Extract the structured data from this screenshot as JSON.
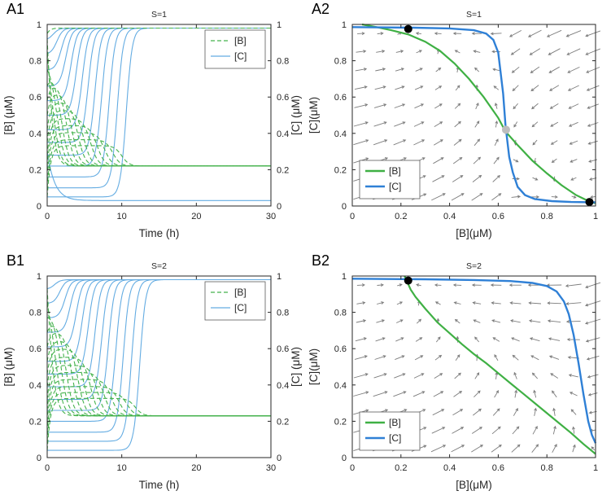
{
  "page": {
    "background": "#ffffff"
  },
  "chart_data": [
    {
      "panel_label": "A1",
      "type": "line",
      "subtype": "timecourse",
      "title": "S=1",
      "xlabel": "Time (h)",
      "ylabel": "[B] (μM)",
      "ylabel_right": "[C] (μM)",
      "xlim": [
        0,
        30
      ],
      "ylim": [
        0,
        1
      ],
      "xticks": [
        0,
        10,
        20,
        30
      ],
      "yticks": [
        0,
        0.2,
        0.4,
        0.6,
        0.8,
        1
      ],
      "legend": {
        "position": "northeast",
        "entries": [
          {
            "label": "[B]",
            "color": "#44b24c",
            "dash": "5,3"
          },
          {
            "label": "[C]",
            "color": "#64ace2",
            "dash": ""
          }
        ]
      },
      "steady_states": {
        "B_high": 0.98,
        "B_low": 0.22,
        "C_high": 0.98,
        "C_low": 0.03
      },
      "trajectories": [
        {
          "v": 0.05,
          "tc": 10.6,
          "fate": "C_high"
        },
        {
          "v": 0.1,
          "tc": 9.4,
          "fate": "C_high"
        },
        {
          "v": 0.16,
          "tc": 8.3,
          "fate": "C_high"
        },
        {
          "v": 0.22,
          "tc": 7.3,
          "fate": "C_high"
        },
        {
          "v": 0.28,
          "tc": 6.4,
          "fate": "C_high"
        },
        {
          "v": 0.35,
          "tc": 5.5,
          "fate": "C_high"
        },
        {
          "v": 0.42,
          "tc": 4.7,
          "fate": "C_high"
        },
        {
          "v": 0.5,
          "tc": 3.9,
          "fate": "C_high"
        },
        {
          "v": 0.58,
          "tc": 3.2,
          "fate": "C_high"
        },
        {
          "v": 0.66,
          "tc": 2.5,
          "fate": "C_high"
        },
        {
          "v": 0.75,
          "tc": 1.9,
          "fate": "C_high"
        },
        {
          "v": 0.84,
          "tc": 1.3,
          "fate": "C_high"
        },
        {
          "v": 0.92,
          "tc": 0.8,
          "fate": "C_high"
        },
        {
          "v": 0.95,
          "c0": 0.3,
          "fate": "B_high"
        }
      ]
    },
    {
      "panel_label": "A2",
      "type": "line",
      "subtype": "phaseplane",
      "title": "S=1",
      "xlabel": "[B](μM)",
      "ylabel": "[C](μM)",
      "xlim": [
        0,
        1
      ],
      "ylim": [
        0,
        1
      ],
      "xticks": [
        0,
        0.2,
        0.4,
        0.6,
        0.8,
        1
      ],
      "yticks": [
        0,
        0.2,
        0.4,
        0.6,
        0.8,
        1
      ],
      "legend": {
        "position": "southwest",
        "entries": [
          {
            "label": "[B]",
            "color": "#3fb044",
            "dash": ""
          },
          {
            "label": "[C]",
            "color": "#2f80d6",
            "dash": ""
          }
        ]
      },
      "nullclines": {
        "B": [
          [
            0.04,
            1.0
          ],
          [
            0.1,
            0.985
          ],
          [
            0.16,
            0.968
          ],
          [
            0.23,
            0.945
          ],
          [
            0.3,
            0.905
          ],
          [
            0.36,
            0.855
          ],
          [
            0.42,
            0.785
          ],
          [
            0.48,
            0.7
          ],
          [
            0.54,
            0.6
          ],
          [
            0.6,
            0.485
          ],
          [
            0.63,
            0.41
          ],
          [
            0.68,
            0.335
          ],
          [
            0.74,
            0.25
          ],
          [
            0.8,
            0.18
          ],
          [
            0.86,
            0.115
          ],
          [
            0.92,
            0.06
          ],
          [
            0.97,
            0.028
          ],
          [
            1.0,
            0.015
          ]
        ],
        "C": [
          [
            0.0,
            0.985
          ],
          [
            0.25,
            0.982
          ],
          [
            0.4,
            0.978
          ],
          [
            0.5,
            0.968
          ],
          [
            0.55,
            0.95
          ],
          [
            0.58,
            0.915
          ],
          [
            0.6,
            0.845
          ],
          [
            0.62,
            0.62
          ],
          [
            0.63,
            0.44
          ],
          [
            0.645,
            0.27
          ],
          [
            0.66,
            0.185
          ],
          [
            0.68,
            0.105
          ],
          [
            0.71,
            0.06
          ],
          [
            0.75,
            0.038
          ],
          [
            0.82,
            0.027
          ],
          [
            0.9,
            0.022
          ],
          [
            1.0,
            0.02
          ]
        ]
      },
      "fixed_points": [
        {
          "B": 0.23,
          "C": 0.975,
          "stability": "stable",
          "color": "#000000"
        },
        {
          "B": 0.632,
          "C": 0.42,
          "stability": "unstable",
          "color": "#bdbdbd"
        },
        {
          "B": 0.975,
          "C": 0.022,
          "stability": "stable",
          "color": "#000000"
        }
      ],
      "vector_field": {
        "color": "#7c7c7c",
        "x0": 0.035,
        "x1": 0.99,
        "nx": 13,
        "y0": 0.05,
        "y1": 0.95,
        "ny": 10,
        "v_scale": 0.3
      }
    },
    {
      "panel_label": "B1",
      "type": "line",
      "subtype": "timecourse",
      "title": "S=2",
      "xlabel": "Time (h)",
      "ylabel": "[B] (μM)",
      "ylabel_right": "[C] (μM)",
      "xlim": [
        0,
        30
      ],
      "ylim": [
        0,
        1
      ],
      "xticks": [
        0,
        10,
        20,
        30
      ],
      "yticks": [
        0,
        0.2,
        0.4,
        0.6,
        0.8,
        1
      ],
      "legend": {
        "position": "northeast",
        "entries": [
          {
            "label": "[B]",
            "color": "#44b24c",
            "dash": "5,3"
          },
          {
            "label": "[C]",
            "color": "#64ace2",
            "dash": ""
          }
        ]
      },
      "steady_states": {
        "B_high": 0.98,
        "B_low": 0.23,
        "C_high": 0.98,
        "C_low": 0.03
      },
      "trajectories": [
        {
          "v": 0.04,
          "tc": 12.4,
          "fate": "C_high"
        },
        {
          "v": 0.09,
          "tc": 11.3,
          "fate": "C_high"
        },
        {
          "v": 0.14,
          "tc": 10.2,
          "fate": "C_high"
        },
        {
          "v": 0.2,
          "tc": 9.2,
          "fate": "C_high"
        },
        {
          "v": 0.26,
          "tc": 8.2,
          "fate": "C_high"
        },
        {
          "v": 0.32,
          "tc": 7.3,
          "fate": "C_high"
        },
        {
          "v": 0.39,
          "tc": 6.4,
          "fate": "C_high"
        },
        {
          "v": 0.46,
          "tc": 5.5,
          "fate": "C_high"
        },
        {
          "v": 0.53,
          "tc": 4.7,
          "fate": "C_high"
        },
        {
          "v": 0.61,
          "tc": 3.9,
          "fate": "C_high"
        },
        {
          "v": 0.69,
          "tc": 3.1,
          "fate": "C_high"
        },
        {
          "v": 0.77,
          "tc": 2.4,
          "fate": "C_high"
        },
        {
          "v": 0.85,
          "tc": 1.7,
          "fate": "C_high"
        },
        {
          "v": 0.93,
          "tc": 1.0,
          "fate": "C_high"
        }
      ]
    },
    {
      "panel_label": "B2",
      "type": "line",
      "subtype": "phaseplane",
      "title": "S=2",
      "xlabel": "[B](μM)",
      "ylabel": "[C](μM)",
      "xlim": [
        0,
        1
      ],
      "ylim": [
        0,
        1
      ],
      "xticks": [
        0,
        0.2,
        0.4,
        0.6,
        0.8,
        1
      ],
      "yticks": [
        0,
        0.2,
        0.4,
        0.6,
        0.8,
        1
      ],
      "legend": {
        "position": "southwest",
        "entries": [
          {
            "label": "[B]",
            "color": "#3fb044",
            "dash": ""
          },
          {
            "label": "[C]",
            "color": "#2f80d6",
            "dash": ""
          }
        ]
      },
      "nullclines": {
        "B": [
          [
            0.215,
            1.0
          ],
          [
            0.225,
            0.97
          ],
          [
            0.24,
            0.925
          ],
          [
            0.26,
            0.885
          ],
          [
            0.3,
            0.82
          ],
          [
            0.35,
            0.745
          ],
          [
            0.4,
            0.685
          ],
          [
            0.45,
            0.625
          ],
          [
            0.5,
            0.57
          ],
          [
            0.55,
            0.52
          ],
          [
            0.6,
            0.465
          ],
          [
            0.65,
            0.41
          ],
          [
            0.7,
            0.355
          ],
          [
            0.75,
            0.3
          ],
          [
            0.8,
            0.245
          ],
          [
            0.85,
            0.19
          ],
          [
            0.9,
            0.135
          ],
          [
            0.95,
            0.075
          ],
          [
            1.0,
            0.02
          ]
        ],
        "C": [
          [
            0.0,
            0.985
          ],
          [
            0.3,
            0.982
          ],
          [
            0.5,
            0.978
          ],
          [
            0.65,
            0.972
          ],
          [
            0.74,
            0.962
          ],
          [
            0.8,
            0.945
          ],
          [
            0.84,
            0.915
          ],
          [
            0.87,
            0.86
          ],
          [
            0.89,
            0.79
          ],
          [
            0.91,
            0.675
          ],
          [
            0.93,
            0.52
          ],
          [
            0.95,
            0.35
          ],
          [
            0.97,
            0.2
          ],
          [
            0.985,
            0.125
          ],
          [
            1.0,
            0.08
          ]
        ]
      },
      "fixed_points": [
        {
          "B": 0.23,
          "C": 0.975,
          "stability": "stable",
          "color": "#000000"
        }
      ],
      "vector_field": {
        "color": "#7c7c7c",
        "x0": 0.035,
        "x1": 0.99,
        "nx": 13,
        "y0": 0.05,
        "y1": 0.95,
        "ny": 10,
        "v_scale": 0.3
      }
    }
  ]
}
